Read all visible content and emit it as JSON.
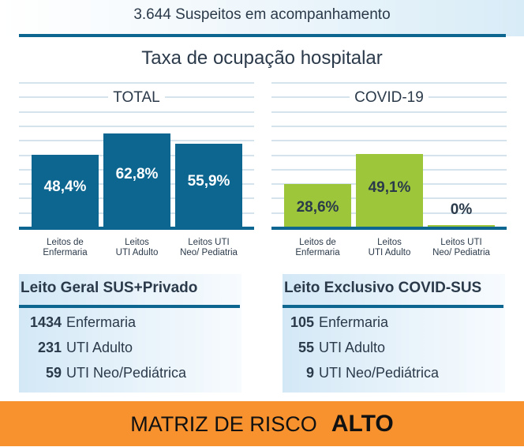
{
  "header": {
    "suspects": "3.644 Suspeitos em acompanhamento"
  },
  "title": "Taxa de ocupação hospitalar",
  "colors": {
    "total_bar": "#0d6690",
    "covid_bar": "#9dc63b",
    "risk_band": "#f7922f"
  },
  "chart_data": [
    {
      "type": "bar",
      "title": "TOTAL",
      "categories": [
        "Leitos de Enfermaria",
        "Leitos UTI Adulto",
        "Leitos UTI Neo/ Pediatria"
      ],
      "category_lines": [
        [
          "Leitos de",
          "Enfermaria"
        ],
        [
          "Leitos",
          "UTI Adulto"
        ],
        [
          "Leitos UTI",
          "Neo/ Pediatria"
        ]
      ],
      "values": [
        48.4,
        62.8,
        55.9
      ],
      "labels": [
        "48,4%",
        "62,8%",
        "55,9%"
      ],
      "unit": "%",
      "ylim": [
        0,
        100
      ],
      "grid": true
    },
    {
      "type": "bar",
      "title": "COVID-19",
      "categories": [
        "Leitos de Enfermaria",
        "Leitos UTI Adulto",
        "Leitos UTI Neo/ Pediatria"
      ],
      "category_lines": [
        [
          "Leitos de",
          "Enfermaria"
        ],
        [
          "Leitos",
          "UTI Adulto"
        ],
        [
          "Leitos UTI",
          "Neo/ Pediatria"
        ]
      ],
      "values": [
        28.6,
        49.1,
        0
      ],
      "labels": [
        "28,6%",
        "49,1%",
        "0%"
      ],
      "unit": "%",
      "ylim": [
        0,
        100
      ],
      "grid": true
    }
  ],
  "panels": [
    {
      "title": "Leito Geral SUS+Privado",
      "rows": [
        {
          "count": "1434",
          "label": "Enfermaria"
        },
        {
          "count": "231",
          "label": "UTI Adulto"
        },
        {
          "count": "59",
          "label": "UTI Neo/Pediátrica"
        }
      ]
    },
    {
      "title": "Leito Exclusivo COVID-SUS",
      "rows": [
        {
          "count": "105",
          "label": "Enfermaria"
        },
        {
          "count": "55",
          "label": "UTI Adulto"
        },
        {
          "count": "9",
          "label": "UTI Neo/Pediátrica"
        }
      ]
    }
  ],
  "risk": {
    "label": "MATRIZ DE RISCO",
    "level": "ALTO"
  }
}
